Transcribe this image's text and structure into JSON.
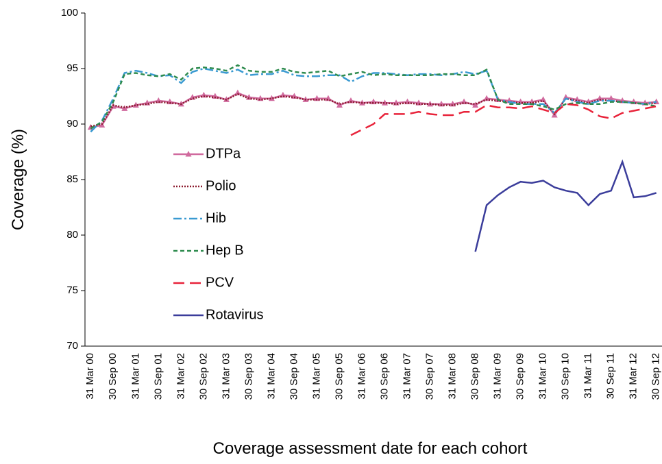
{
  "chart_data": {
    "type": "line",
    "ylabel": "Coverage (%)",
    "xlabel": "Coverage assessment date for each cohort",
    "categories": [
      "31 Mar 00",
      null,
      "30 Sep 00",
      null,
      "31 Mar 01",
      null,
      "30 Sep 01",
      null,
      "31 Mar 02",
      null,
      "30 Sep 02",
      null,
      "31 Mar 03",
      null,
      "30 Sep 03",
      null,
      "31 Mar 04",
      null,
      "30 Sep 04",
      null,
      "31 Mar 05",
      null,
      "30 Sep 05",
      null,
      "31 Mar 06",
      null,
      "30 Sep 06",
      null,
      "31 Mar 07",
      null,
      "30 Sep 07",
      null,
      "31 Mar 08",
      null,
      "30 Sep 08",
      null,
      "31 Mar 09",
      null,
      "30 Sep 09",
      null,
      "31 Mar 10",
      null,
      "30 Sep 10",
      null,
      "31 Mar 11",
      null,
      "30 Sep 11",
      null,
      "31 Mar 12",
      null,
      "30 Sep 12"
    ],
    "ylim": [
      70,
      100
    ],
    "yticks": [
      70,
      75,
      80,
      85,
      90,
      95,
      100
    ],
    "grid": false,
    "series": [
      {
        "name": "DTPa",
        "color": "#d06a9e",
        "dash": "none",
        "marker": "triangle",
        "values": [
          89.7,
          89.9,
          91.6,
          91.4,
          91.7,
          91.9,
          92.1,
          92.0,
          91.8,
          92.4,
          92.6,
          92.5,
          92.2,
          92.8,
          92.4,
          92.3,
          92.3,
          92.6,
          92.5,
          92.2,
          92.3,
          92.3,
          91.7,
          92.1,
          91.9,
          92.0,
          91.9,
          91.9,
          92.0,
          91.9,
          91.8,
          91.8,
          91.8,
          92.0,
          91.7,
          92.3,
          92.2,
          92.1,
          92.0,
          92.0,
          92.2,
          90.8,
          92.4,
          92.2,
          92.0,
          92.3,
          92.3,
          92.1,
          92.0,
          91.9,
          92.0
        ]
      },
      {
        "name": "Polio",
        "color": "#8b1a2e",
        "dash": "2,2",
        "marker": "none",
        "values": [
          89.8,
          90.0,
          91.7,
          91.5,
          91.7,
          91.8,
          92.0,
          91.9,
          91.8,
          92.3,
          92.5,
          92.4,
          92.2,
          92.7,
          92.3,
          92.2,
          92.3,
          92.5,
          92.4,
          92.2,
          92.2,
          92.2,
          91.8,
          92.0,
          91.9,
          91.9,
          91.9,
          91.8,
          91.9,
          91.8,
          91.8,
          91.7,
          91.7,
          91.9,
          91.8,
          92.2,
          92.1,
          92.0,
          91.9,
          91.9,
          92.1,
          90.9,
          92.3,
          92.1,
          91.9,
          92.2,
          92.1,
          92.0,
          91.9,
          91.8,
          91.9
        ]
      },
      {
        "name": "Hib",
        "color": "#3a9ad1",
        "dash": "12,4,3,4",
        "marker": "none",
        "values": [
          89.3,
          90.3,
          92.3,
          94.6,
          94.8,
          94.6,
          94.3,
          94.4,
          93.7,
          94.7,
          95.0,
          94.8,
          94.6,
          94.9,
          94.4,
          94.5,
          94.5,
          94.8,
          94.4,
          94.3,
          94.3,
          94.4,
          94.4,
          93.8,
          94.3,
          94.6,
          94.6,
          94.5,
          94.4,
          94.5,
          94.5,
          94.4,
          94.5,
          94.7,
          94.5,
          94.8,
          92.2,
          92.0,
          91.8,
          91.8,
          91.8,
          91.0,
          92.3,
          92.0,
          91.8,
          92.1,
          92.1,
          92.0,
          91.9,
          91.8,
          92.0
        ]
      },
      {
        "name": "Hep B",
        "color": "#2e8b4e",
        "dash": "6,4",
        "marker": "none",
        "values": [
          89.6,
          90.2,
          92.0,
          94.5,
          94.6,
          94.4,
          94.3,
          94.5,
          94.0,
          95.0,
          95.1,
          95.0,
          94.8,
          95.3,
          94.8,
          94.7,
          94.7,
          95.0,
          94.7,
          94.6,
          94.7,
          94.8,
          94.3,
          94.5,
          94.7,
          94.4,
          94.5,
          94.4,
          94.4,
          94.4,
          94.4,
          94.5,
          94.5,
          94.4,
          94.4,
          94.9,
          92.2,
          91.8,
          91.8,
          91.8,
          91.6,
          91.3,
          91.8,
          91.9,
          91.8,
          91.8,
          92.0,
          92.0,
          91.9,
          91.8,
          91.6
        ]
      },
      {
        "name": "PCV",
        "color": "#e8233a",
        "dash": "16,8",
        "marker": "none",
        "values": [
          null,
          null,
          null,
          null,
          null,
          null,
          null,
          null,
          null,
          null,
          null,
          null,
          null,
          null,
          null,
          null,
          null,
          null,
          null,
          null,
          null,
          null,
          null,
          89.0,
          89.5,
          90.0,
          90.9,
          90.9,
          90.9,
          91.1,
          90.9,
          90.8,
          90.8,
          91.1,
          91.1,
          91.7,
          91.5,
          91.5,
          91.4,
          91.6,
          91.3,
          91.0,
          91.8,
          91.7,
          91.3,
          90.7,
          90.5,
          91.0,
          91.2,
          91.4,
          91.6
        ]
      },
      {
        "name": "Rotavirus",
        "color": "#3b3d9b",
        "dash": "none",
        "marker": "none",
        "values": [
          null,
          null,
          null,
          null,
          null,
          null,
          null,
          null,
          null,
          null,
          null,
          null,
          null,
          null,
          null,
          null,
          null,
          null,
          null,
          null,
          null,
          null,
          null,
          null,
          null,
          null,
          null,
          null,
          null,
          null,
          null,
          null,
          null,
          null,
          78.5,
          82.7,
          83.6,
          84.3,
          84.8,
          84.7,
          84.9,
          84.3,
          84.0,
          83.8,
          82.7,
          83.7,
          84.0,
          86.6,
          83.4,
          83.5,
          83.8
        ]
      }
    ]
  }
}
